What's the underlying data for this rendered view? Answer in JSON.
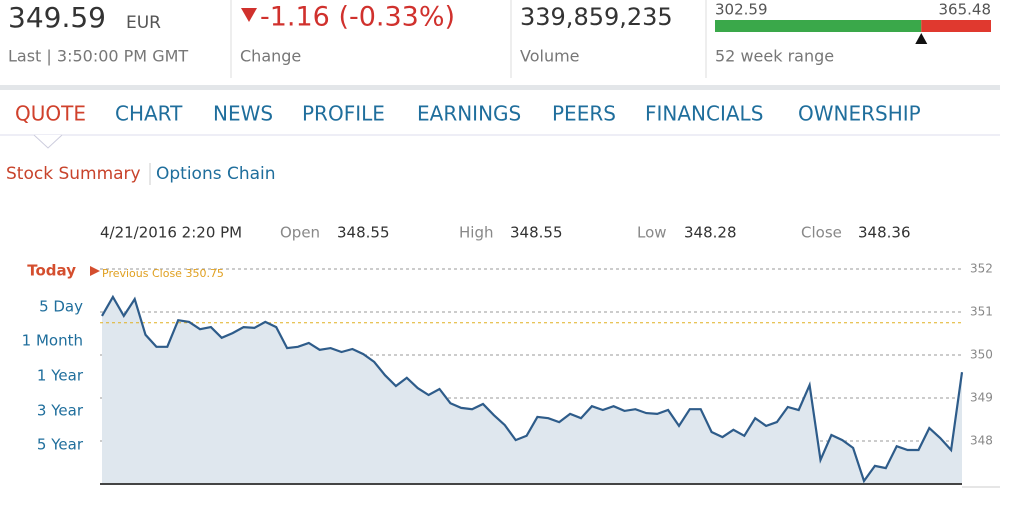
{
  "header": {
    "price": 349.59,
    "currency": "EUR",
    "last": "Last | 3:50:00 PM GMT",
    "change": "-1.16 (-0.33%)",
    "change_label": "Change",
    "volume": "339,859,235",
    "volume_label": "Volume",
    "range_low": 302.59,
    "range_high": 365.48,
    "range_label": "52 week range"
  },
  "tabs": [
    "QUOTE",
    "CHART",
    "NEWS",
    "PROFILE",
    "EARNINGS",
    "PEERS",
    "FINANCIALS",
    "OWNERSHIP"
  ],
  "subtabs": [
    "Stock Summary",
    "Options Chain"
  ],
  "info": {
    "date": "4/21/2016 2:20 PM",
    "items": [
      {
        "label": "Open",
        "value": "348.55"
      },
      {
        "label": "High",
        "value": "348.55"
      },
      {
        "label": "Low",
        "value": "348.28"
      },
      {
        "label": "Close",
        "value": "348.36"
      }
    ]
  },
  "periods": [
    "Today",
    "5 Day",
    "1 Month",
    "1 Year",
    "3 Year",
    "5 Year"
  ],
  "chart_data": {
    "type": "line",
    "color": "#2e5c8a",
    "fill": "#dfe7ee",
    "previous_close": {
      "label": "Previous Close 350.75",
      "value": 350.75
    },
    "ylim": [
      347,
      352
    ],
    "yticks": [
      348,
      349,
      350,
      351,
      352
    ],
    "grid": true,
    "values": [
      350.91,
      351.35,
      350.91,
      351.3,
      350.47,
      350.19,
      350.19,
      350.81,
      350.77,
      350.6,
      350.65,
      350.4,
      350.51,
      350.65,
      350.63,
      350.77,
      350.65,
      350.16,
      350.19,
      350.28,
      350.12,
      350.16,
      350.07,
      350.14,
      350.02,
      349.84,
      349.53,
      349.28,
      349.47,
      349.23,
      349.07,
      349.21,
      348.88,
      348.77,
      348.74,
      348.86,
      348.6,
      348.37,
      348.02,
      348.12,
      348.56,
      348.53,
      348.44,
      348.63,
      348.53,
      348.81,
      348.72,
      348.81,
      348.7,
      348.74,
      348.65,
      348.63,
      348.72,
      348.35,
      348.74,
      348.74,
      348.21,
      348.09,
      348.26,
      348.12,
      348.53,
      348.35,
      348.44,
      348.79,
      348.72,
      349.3,
      347.56,
      348.14,
      348.02,
      347.84,
      347.07,
      347.42,
      347.37,
      347.88,
      347.79,
      347.79,
      348.3,
      348.07,
      347.79,
      349.6
    ]
  }
}
